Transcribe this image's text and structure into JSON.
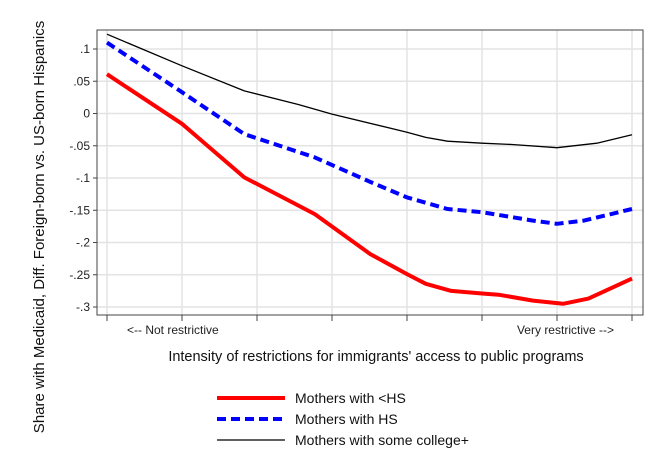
{
  "chart_data": {
    "type": "line",
    "title": "",
    "xlabel": "Intensity of restrictions for immigrants' access to public programs",
    "ylabel": "Share with Medicaid, Diff. Foreign-born vs. US-born Hispanics",
    "x_annotations": {
      "left": "<-- Not restrictive",
      "right": "Very restrictive -->"
    },
    "xlim": [
      0,
      7
    ],
    "ylim": [
      -0.3,
      0.1
    ],
    "yticks": [
      0.1,
      0.05,
      0,
      -0.05,
      -0.1,
      -0.15,
      -0.2,
      -0.25,
      -0.3
    ],
    "ytick_labels": [
      ".1",
      ".05",
      "0",
      "-.05",
      "-.1",
      "-.15",
      "-.2",
      "-.25",
      "-.3"
    ],
    "xticks": [
      0,
      1,
      2,
      3,
      4,
      5,
      6,
      7
    ],
    "grid": true,
    "legend_position": "bottom",
    "series": [
      {
        "name": "Mothers with <HS",
        "color": "#ff0000",
        "style": "solid-thick",
        "x": [
          0,
          1,
          1.52,
          1.83,
          2.26,
          2.77,
          3.51,
          4,
          4.25,
          4.59,
          5,
          5.22,
          5.68,
          6.08,
          6.42,
          7
        ],
        "y": [
          0.061,
          -0.016,
          -0.068,
          -0.099,
          -0.125,
          -0.156,
          -0.218,
          -0.249,
          -0.264,
          -0.275,
          -0.279,
          -0.281,
          -0.29,
          -0.295,
          -0.287,
          -0.256
        ]
      },
      {
        "name": "Mothers with HS",
        "color": "#0000ff",
        "style": "dashed",
        "x": [
          0,
          1,
          1.83,
          2.77,
          3.51,
          4,
          4.54,
          5,
          5.68,
          6,
          6.36,
          7
        ],
        "y": [
          0.11,
          0.033,
          -0.032,
          -0.068,
          -0.106,
          -0.13,
          -0.148,
          -0.153,
          -0.166,
          -0.171,
          -0.166,
          -0.148
        ]
      },
      {
        "name": "Mothers with some college+",
        "color": "#000000",
        "style": "solid-thin",
        "x": [
          0,
          1,
          1.83,
          2.55,
          3,
          4,
          4.25,
          4.54,
          5,
          5.4,
          6,
          6.53,
          7
        ],
        "y": [
          0.123,
          0.074,
          0.035,
          0.014,
          -0.001,
          -0.029,
          -0.037,
          -0.043,
          -0.046,
          -0.048,
          -0.053,
          -0.046,
          -0.033
        ]
      }
    ]
  }
}
